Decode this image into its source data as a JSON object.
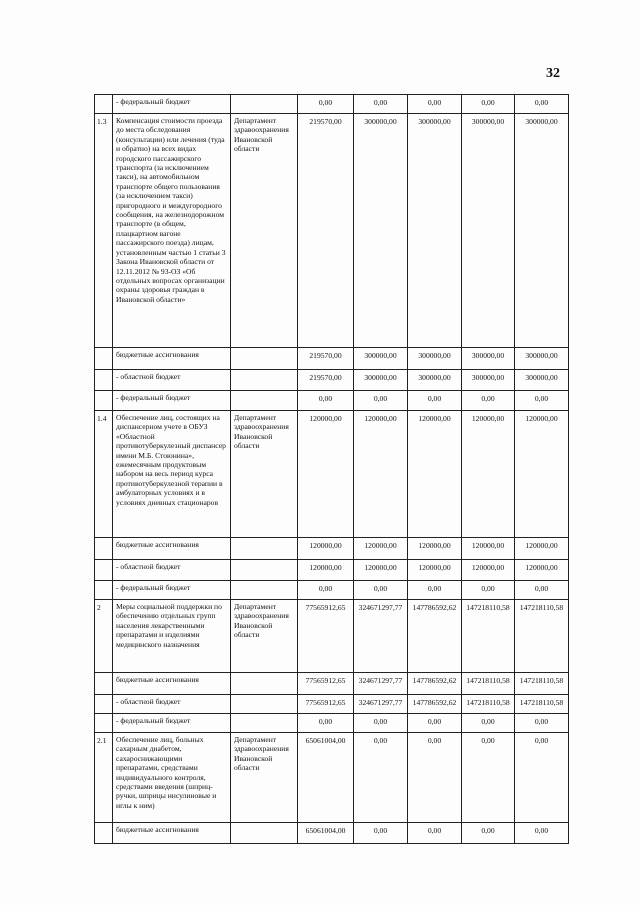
{
  "page_number": "32",
  "rows": [
    {
      "num": "",
      "name": "- федеральный бюджет",
      "dept": "",
      "values": [
        "0,00",
        "0,00",
        "0,00",
        "0,00",
        "0,00"
      ]
    },
    {
      "num": "1.3",
      "name": "Компенсация стоимости проезда до места обследования (консультации) или лечения (туда и обратно) на всех видах городского пассажирского транспорта (за исключением такси), на автомобильном транспорте общего пользования (за исключением такси) пригородного и междугородного сообщения, на железнодорожном транспорте (в общем, плацкартном вагоне пассажирского поезда) лицам, установленным частью 1 статьи 3 Закона Ивановской области от 12.11.2012 № 93-ОЗ «Об отдельных вопросах организации охраны здоровья граждан в Ивановской области»",
      "dept": "Департамент здравоохранения Ивановской области",
      "values": [
        "219570,00",
        "300000,00",
        "300000,00",
        "300000,00",
        "300000,00"
      ]
    },
    {
      "num": "",
      "name": "бюджетные ассигнования",
      "dept": "",
      "values": [
        "219570,00",
        "300000,00",
        "300000,00",
        "300000,00",
        "300000,00"
      ]
    },
    {
      "num": "",
      "name": "- областной бюджет",
      "dept": "",
      "values": [
        "219570,00",
        "300000,00",
        "300000,00",
        "300000,00",
        "300000,00"
      ]
    },
    {
      "num": "",
      "name": "- федеральный бюджет",
      "dept": "",
      "values": [
        "0,00",
        "0,00",
        "0,00",
        "0,00",
        "0,00"
      ]
    },
    {
      "num": "1.4",
      "name": "Обеспечение лиц, состоящих на диспансерном учете в ОБУЗ «Областной противотуберкулезный диспансер имени М.Б. Стоюнина», ежемесячным продуктовым набором на весь период курса противотуберкулезной терапии в амбулаторных условиях и в условиях дневных стационаров",
      "dept": "Департамент здравоохранения Ивановской области",
      "values": [
        "120000,00",
        "120000,00",
        "120000,00",
        "120000,00",
        "120000,00"
      ]
    },
    {
      "num": "",
      "name": "бюджетные ассигнования",
      "dept": "",
      "values": [
        "120000,00",
        "120000,00",
        "120000,00",
        "120000,00",
        "120000,00"
      ]
    },
    {
      "num": "",
      "name": "- областной бюджет",
      "dept": "",
      "values": [
        "120000,00",
        "120000,00",
        "120000,00",
        "120000,00",
        "120000,00"
      ]
    },
    {
      "num": "",
      "name": "- федеральный бюджет",
      "dept": "",
      "values": [
        "0,00",
        "0,00",
        "0,00",
        "0,00",
        "0,00"
      ]
    },
    {
      "num": "2",
      "name": "Меры социальной поддержки по обеспечению отдельных групп населения лекарственными препаратами и изделиями медицинского назначения",
      "dept": "Департамент здравоохранения Ивановской области",
      "values": [
        "77565912,65",
        "324671297,77",
        "147786592,62",
        "147218110,58",
        "147218110,58"
      ]
    },
    {
      "num": "",
      "name": "бюджетные ассигнования",
      "dept": "",
      "values": [
        "77565912,65",
        "324671297,77",
        "147786592,62",
        "147218110,58",
        "147218110,58"
      ]
    },
    {
      "num": "",
      "name": "- областной бюджет",
      "dept": "",
      "values": [
        "77565912,65",
        "324671297,77",
        "147786592,62",
        "147218110,58",
        "147218110,58"
      ]
    },
    {
      "num": "",
      "name": "- федеральный бюджет",
      "dept": "",
      "values": [
        "0,00",
        "0,00",
        "0,00",
        "0,00",
        "0,00"
      ]
    },
    {
      "num": "2.1",
      "name": "Обеспечение лиц, больных сахарным диабетом, сахароснижающими препаратами, средствами индивидуального контроля, средствами введения (шприц-ручки, шприцы инсулиновые и иглы к ним)",
      "dept": "Департамент здравоохранения Ивановской области",
      "values": [
        "65061004,00",
        "0,00",
        "0,00",
        "0,00",
        "0,00"
      ]
    },
    {
      "num": "",
      "name": "бюджетные ассигнования",
      "dept": "",
      "values": [
        "65061004,00",
        "0,00",
        "0,00",
        "0,00",
        "0,00"
      ]
    }
  ]
}
